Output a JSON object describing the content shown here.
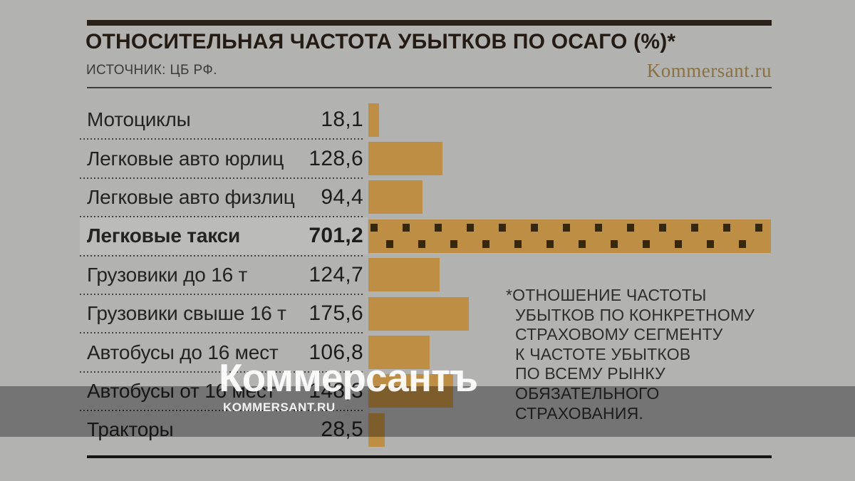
{
  "header": {
    "logo": "Kommersant.ru"
  },
  "watermark": {
    "main": "Коммерсантъ",
    "sub": "KOMMERSANT.RU"
  },
  "chart_data": {
    "type": "bar",
    "orientation": "horizontal",
    "title": "ОТНОСИТЕЛЬНАЯ ЧАСТОТА УБЫТКОВ ПО ОСАГО (%)*",
    "source": "ИСТОЧНИК: ЦБ РФ.",
    "categories": [
      "Мотоциклы",
      "Легковые авто юрлиц",
      "Легковые авто физлиц",
      "Легковые такси",
      "Грузовики до 16 т",
      "Грузовики свыше 16 т",
      "Автобусы до 16 мест",
      "Автобусы от 16 мест",
      "Тракторы"
    ],
    "values": [
      18.1,
      128.6,
      94.4,
      701.2,
      124.7,
      175.6,
      106.8,
      148.3,
      28.5
    ],
    "value_labels": [
      "18,1",
      "128,6",
      "94,4",
      "701,2",
      "124,7",
      "175,6",
      "106,8",
      "148,3",
      "28,5"
    ],
    "xlim": [
      0,
      701.2
    ],
    "highlight_index": 3,
    "highlight_pattern": "dark-squares",
    "bar_color": "#bd8e43",
    "pattern_color": "#35280f",
    "legend": "none",
    "grid": "off",
    "footnote_lines": [
      "*ОТНОШЕНИЕ ЧАСТОТЫ",
      "УБЫТКОВ ПО КОНКРЕТНОМУ",
      "СТРАХОВОМУ СЕГМЕНТУ",
      "К ЧАСТОТЕ УБЫТКОВ",
      "ПО ВСЕМУ РЫНКУ",
      "ОБЯЗАТЕЛЬНОГО",
      "СТРАХОВАНИЯ."
    ]
  }
}
